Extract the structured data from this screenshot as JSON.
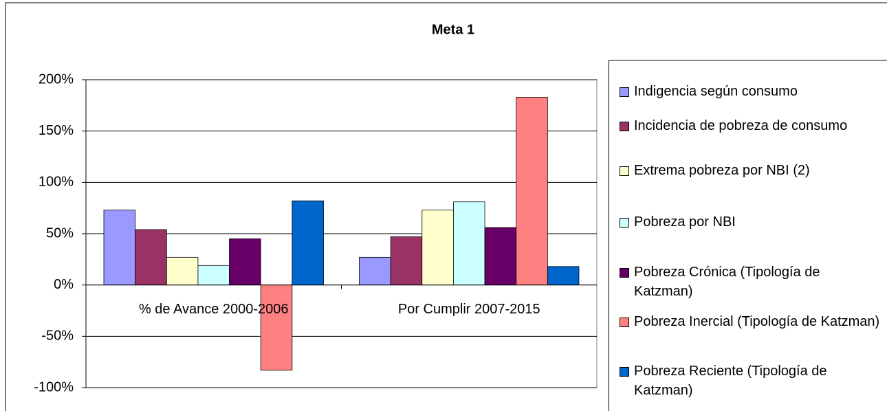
{
  "chart_data": {
    "type": "bar",
    "title": "Meta 1",
    "categories": [
      "% de Avance 2000-2006",
      "Por Cumplir 2007-2015"
    ],
    "series": [
      {
        "name": "Indigencia según consumo",
        "color": "#9999ff",
        "values": [
          73,
          27
        ]
      },
      {
        "name": "Incidencia de pobreza de consumo",
        "color": "#993366",
        "values": [
          54,
          47
        ]
      },
      {
        "name": "Extrema pobreza por NBI (2)",
        "color": "#ffffcc",
        "values": [
          27,
          73
        ]
      },
      {
        "name": "Pobreza por NBI",
        "color": "#ccffff",
        "values": [
          19,
          81
        ]
      },
      {
        "name": "Pobreza Crónica (Tipología de Katzman)",
        "color": "#660066",
        "values": [
          45,
          56
        ]
      },
      {
        "name": "Pobreza Inercial (Tipología de Katzman)",
        "color": "#ff8080",
        "values": [
          -83,
          183
        ]
      },
      {
        "name": "Pobreza Reciente (Tipología de Katzman)",
        "color": "#0066cc",
        "values": [
          82,
          18
        ]
      }
    ],
    "ylim": [
      -100,
      200
    ],
    "yticks": [
      {
        "value": -100,
        "label": "-100%"
      },
      {
        "value": -50,
        "label": "-50%"
      },
      {
        "value": 0,
        "label": "0%"
      },
      {
        "value": 50,
        "label": "50%"
      },
      {
        "value": 100,
        "label": "100%"
      },
      {
        "value": 150,
        "label": "150%"
      },
      {
        "value": 200,
        "label": "200%"
      }
    ],
    "grid": true,
    "legend": "right"
  }
}
